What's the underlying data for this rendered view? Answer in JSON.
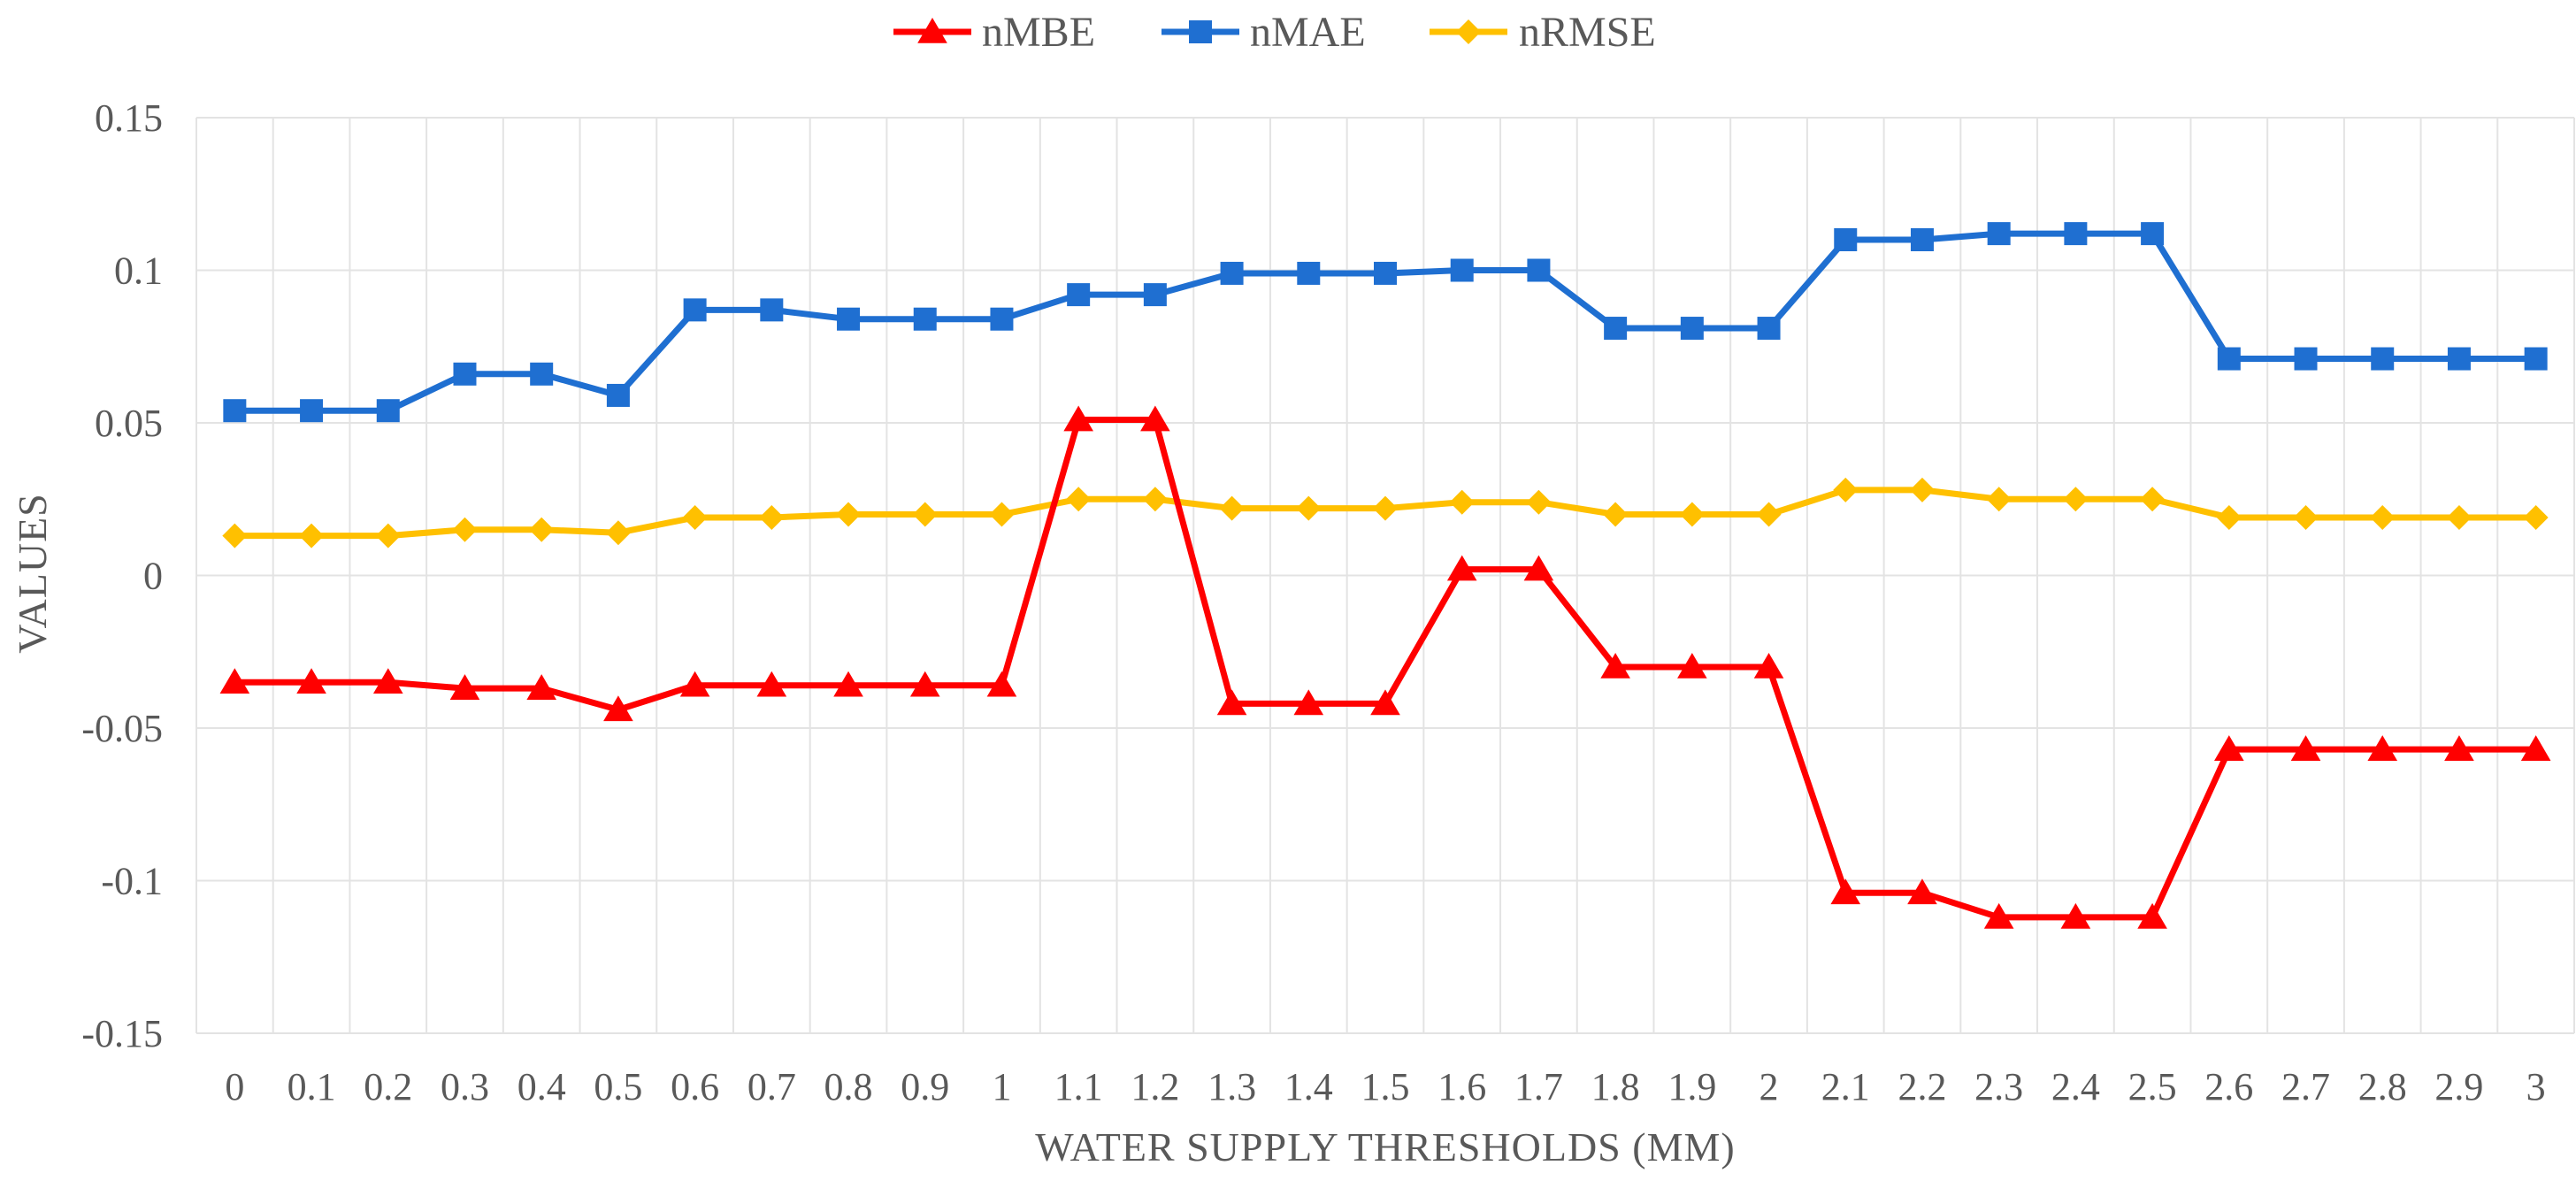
{
  "chart_data": {
    "type": "line",
    "title": "",
    "xlabel": "WATER SUPPLY THRESHOLDS (MM)",
    "ylabel": "VALUES",
    "ylim": [
      -0.15,
      0.15
    ],
    "yticks": [
      "0.15",
      "0.1",
      "0.05",
      "0",
      "-0.05",
      "-0.1",
      "-0.15"
    ],
    "ytick_values": [
      0.15,
      0.1,
      0.05,
      0,
      -0.05,
      -0.1,
      -0.15
    ],
    "categories": [
      "0",
      "0.1",
      "0.2",
      "0.3",
      "0.4",
      "0.5",
      "0.6",
      "0.7",
      "0.8",
      "0.9",
      "1",
      "1.1",
      "1.2",
      "1.3",
      "1.4",
      "1.5",
      "1.6",
      "1.7",
      "1.8",
      "1.9",
      "2",
      "2.1",
      "2.2",
      "2.3",
      "2.4",
      "2.5",
      "2.6",
      "2.7",
      "2.8",
      "2.9",
      "3"
    ],
    "grid": true,
    "legend_position": "top-center",
    "series": [
      {
        "name": "nMBE",
        "color": "#ff0000",
        "marker": "triangle",
        "values": [
          -0.035,
          -0.035,
          -0.035,
          -0.037,
          -0.037,
          -0.044,
          -0.036,
          -0.036,
          -0.036,
          -0.036,
          -0.036,
          0.051,
          0.051,
          -0.042,
          -0.042,
          -0.042,
          0.002,
          0.002,
          -0.03,
          -0.03,
          -0.03,
          -0.104,
          -0.104,
          -0.112,
          -0.112,
          -0.112,
          -0.057,
          -0.057,
          -0.057,
          -0.057,
          -0.057
        ]
      },
      {
        "name": "nMAE",
        "color": "#1f6fd1",
        "marker": "square",
        "values": [
          0.054,
          0.054,
          0.054,
          0.066,
          0.066,
          0.059,
          0.087,
          0.087,
          0.084,
          0.084,
          0.084,
          0.092,
          0.092,
          0.099,
          0.099,
          0.099,
          0.1,
          0.1,
          0.081,
          0.081,
          0.081,
          0.11,
          0.11,
          0.112,
          0.112,
          0.112,
          0.071,
          0.071,
          0.071,
          0.071,
          0.071
        ]
      },
      {
        "name": "nRMSE",
        "color": "#ffc000",
        "marker": "diamond",
        "values": [
          0.013,
          0.013,
          0.013,
          0.015,
          0.015,
          0.014,
          0.019,
          0.019,
          0.02,
          0.02,
          0.02,
          0.025,
          0.025,
          0.022,
          0.022,
          0.022,
          0.024,
          0.024,
          0.02,
          0.02,
          0.02,
          0.028,
          0.028,
          0.025,
          0.025,
          0.025,
          0.019,
          0.019,
          0.019,
          0.019,
          0.019
        ]
      }
    ]
  }
}
